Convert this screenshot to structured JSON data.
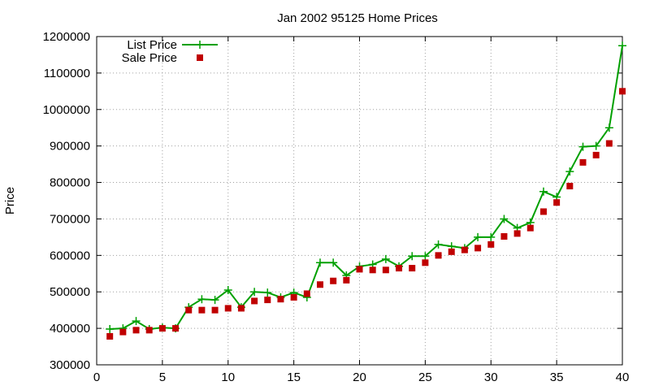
{
  "chart_data": {
    "type": "line",
    "title": "Jan 2002 95125 Home Prices",
    "xlabel": "",
    "ylabel": "Price",
    "xlim": [
      0,
      40
    ],
    "ylim": [
      300000,
      1200000
    ],
    "x_ticks": [
      0,
      5,
      10,
      15,
      20,
      25,
      30,
      35,
      40
    ],
    "y_ticks": [
      300000,
      400000,
      500000,
      600000,
      700000,
      800000,
      900000,
      1000000,
      1100000,
      1200000
    ],
    "x_tick_labels": [
      "0",
      "5",
      "10",
      "15",
      "20",
      "25",
      "30",
      "35",
      "40"
    ],
    "y_tick_labels": [
      "300000",
      "400000",
      "500000",
      "600000",
      "700000",
      "800000",
      "900000",
      "1000000",
      "1100000",
      "1200000"
    ],
    "grid": true,
    "legend_position": "top-left",
    "x": [
      1,
      2,
      3,
      4,
      5,
      6,
      7,
      8,
      9,
      10,
      11,
      12,
      13,
      14,
      15,
      16,
      17,
      18,
      19,
      20,
      21,
      22,
      23,
      24,
      25,
      26,
      27,
      28,
      29,
      30,
      31,
      32,
      33,
      34,
      35,
      36,
      37,
      38,
      39,
      40
    ],
    "series": [
      {
        "name": "List Price",
        "style": "line-plus",
        "color": "#00a000",
        "values": [
          398000,
          400000,
          420000,
          398000,
          402000,
          400000,
          458000,
          480000,
          478000,
          505000,
          458000,
          500000,
          498000,
          485000,
          498000,
          485000,
          580000,
          580000,
          545000,
          570000,
          575000,
          590000,
          570000,
          598000,
          598000,
          630000,
          625000,
          620000,
          650000,
          650000,
          700000,
          675000,
          690000,
          775000,
          760000,
          830000,
          898000,
          900000,
          950000,
          1175000
        ]
      },
      {
        "name": "Sale Price",
        "style": "square",
        "color": "#c00000",
        "values": [
          378000,
          390000,
          395000,
          395000,
          400000,
          400000,
          450000,
          450000,
          450000,
          455000,
          455000,
          475000,
          478000,
          480000,
          485000,
          495000,
          520000,
          530000,
          532000,
          562000,
          560000,
          560000,
          565000,
          565000,
          580000,
          600000,
          610000,
          615000,
          620000,
          630000,
          652000,
          660000,
          675000,
          720000,
          745000,
          790000,
          855000,
          875000,
          907000,
          1050000
        ]
      }
    ]
  }
}
